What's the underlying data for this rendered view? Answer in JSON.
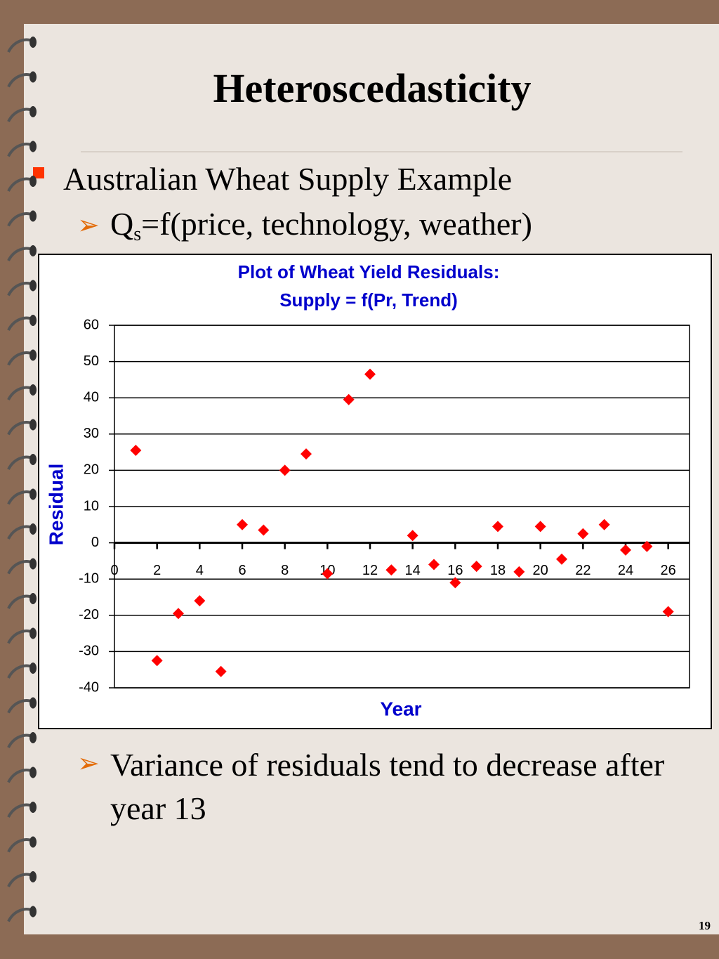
{
  "slide": {
    "title": "Heteroscedasticity",
    "bullet": "Australian Wheat Supply Example",
    "sub_bullet_1": {
      "main": "Q",
      "subscript": "s",
      "rest": "=f(price, technology, weather)"
    },
    "sub_bullet_2": "Variance of residuals tend to decrease after year 13",
    "page_number": "19"
  },
  "chart_data": {
    "type": "scatter",
    "title": "Plot of Wheat Yield Residuals:",
    "subtitle": "Supply = f(Pr, Trend)",
    "x_label": "Year",
    "y_label": "Residual",
    "x": [
      1,
      2,
      3,
      4,
      5,
      6,
      7,
      8,
      9,
      10,
      11,
      12,
      13,
      14,
      15,
      16,
      17,
      18,
      19,
      20,
      21,
      22,
      23,
      24,
      25,
      26
    ],
    "series": [
      {
        "name": "Residual",
        "color": "#ff0000",
        "values": [
          25.5,
          -32.5,
          -19.5,
          -16,
          -35.5,
          5,
          3.5,
          20,
          24.5,
          -8.5,
          39.5,
          46.5,
          -7.5,
          2,
          -6,
          -11,
          -6.5,
          4.5,
          -8,
          4.5,
          -4.5,
          2.5,
          5,
          -2,
          -1,
          -19
        ]
      }
    ],
    "xlim": [
      0,
      27
    ],
    "xticks": [
      0,
      2,
      4,
      6,
      8,
      10,
      12,
      14,
      16,
      18,
      20,
      22,
      24,
      26
    ],
    "ylim": [
      -40,
      60
    ],
    "yticks": [
      -40,
      -30,
      -20,
      -10,
      0,
      10,
      20,
      30,
      40,
      50,
      60
    ],
    "grid": true
  }
}
